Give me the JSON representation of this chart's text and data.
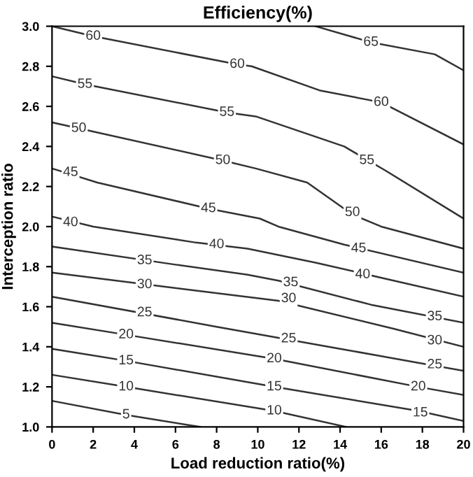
{
  "chart_data": {
    "type": "line",
    "title": "Efficiency(%)",
    "xlabel": "Load reduction ratio(%)",
    "ylabel": "Interception ratio",
    "xlim": [
      0,
      20
    ],
    "xticks": [
      0,
      2,
      4,
      6,
      8,
      10,
      12,
      14,
      16,
      18,
      20
    ],
    "ylim": [
      1.0,
      3.0
    ],
    "yticks": [
      {
        "value": 1.0,
        "label": "1.0"
      },
      {
        "value": 1.2,
        "label": "1.2"
      },
      {
        "value": 1.4,
        "label": "1.4"
      },
      {
        "value": 1.6,
        "label": "1.6"
      },
      {
        "value": 1.8,
        "label": "1.8"
      },
      {
        "value": 2.0,
        "label": "2.0"
      },
      {
        "value": 2.2,
        "label": "2.2"
      },
      {
        "value": 2.4,
        "label": "2.4"
      },
      {
        "value": 2.6,
        "label": "2.6"
      },
      {
        "value": 2.8,
        "label": "2.8"
      },
      {
        "value": 3.0,
        "label": "3.0"
      }
    ],
    "grid": false,
    "line_style": "solid",
    "series": [
      {
        "color": "#333333",
        "x": [
          12.8,
          15.5,
          18.6,
          20
        ],
        "values": [
          3.0,
          2.92,
          2.86,
          2.78
        ]
      },
      {
        "color": "#333333",
        "x": [
          0,
          2,
          9,
          9.7,
          13,
          16,
          20
        ],
        "values": [
          3.0,
          2.95,
          2.81,
          2.8,
          2.68,
          2.62,
          2.41
        ]
      },
      {
        "color": "#333333",
        "x": [
          0,
          1.6,
          8.5,
          9.9,
          14.2,
          16.2,
          20
        ],
        "values": [
          2.75,
          2.71,
          2.57,
          2.55,
          2.4,
          2.28,
          2.04
        ]
      },
      {
        "color": "#333333",
        "x": [
          0,
          1.3,
          8.3,
          9.9,
          12.4,
          14.6,
          16,
          20
        ],
        "values": [
          2.52,
          2.49,
          2.33,
          2.29,
          2.22,
          2.06,
          2.0,
          1.89
        ]
      },
      {
        "color": "#333333",
        "x": [
          0,
          2.2,
          7.6,
          10.1,
          11,
          14.2,
          20
        ],
        "values": [
          2.29,
          2.22,
          2.09,
          2.04,
          2.0,
          1.91,
          1.77
        ]
      },
      {
        "color": "#333333",
        "x": [
          0,
          2,
          7,
          9.5,
          12.8,
          16.2,
          20
        ],
        "values": [
          2.05,
          2.0,
          1.92,
          1.89,
          1.82,
          1.74,
          1.65
        ]
      },
      {
        "color": "#333333",
        "x": [
          0,
          6,
          9.5,
          11,
          15.5,
          20
        ],
        "values": [
          1.9,
          1.81,
          1.76,
          1.73,
          1.61,
          1.52
        ]
      },
      {
        "color": "#333333",
        "x": [
          0,
          7,
          11,
          16.6,
          20
        ],
        "values": [
          1.77,
          1.68,
          1.63,
          1.49,
          1.4
        ]
      },
      {
        "color": "#333333",
        "x": [
          0,
          8,
          14,
          17.8,
          20
        ],
        "values": [
          1.65,
          1.5,
          1.39,
          1.32,
          1.28
        ]
      },
      {
        "color": "#333333",
        "x": [
          0,
          3.6,
          10.8,
          17.8,
          20
        ],
        "values": [
          1.52,
          1.46,
          1.34,
          1.2,
          1.16
        ]
      },
      {
        "color": "#333333",
        "x": [
          0,
          3.6,
          10.8,
          17.8,
          20
        ],
        "values": [
          1.39,
          1.33,
          1.2,
          1.08,
          1.03
        ]
      },
      {
        "color": "#333333",
        "x": [
          0,
          3.6,
          10.8,
          14.3
        ],
        "values": [
          1.26,
          1.2,
          1.08,
          1.0
        ]
      },
      {
        "color": "#333333",
        "x": [
          0,
          3.6,
          7.2
        ],
        "values": [
          1.13,
          1.06,
          1.0
        ]
      }
    ],
    "annotations": [
      {
        "text": "65",
        "x": 15.5,
        "y": 2.92
      },
      {
        "text": "60",
        "x": 2,
        "y": 2.95
      },
      {
        "text": "60",
        "x": 9,
        "y": 2.81
      },
      {
        "text": "60",
        "x": 16,
        "y": 2.62
      },
      {
        "text": "55",
        "x": 1.6,
        "y": 2.71
      },
      {
        "text": "55",
        "x": 8.5,
        "y": 2.57
      },
      {
        "text": "55",
        "x": 15.3,
        "y": 2.33
      },
      {
        "text": "50",
        "x": 1.3,
        "y": 2.49
      },
      {
        "text": "50",
        "x": 8.3,
        "y": 2.33
      },
      {
        "text": "50",
        "x": 14.6,
        "y": 2.07
      },
      {
        "text": "45",
        "x": 0.9,
        "y": 2.27
      },
      {
        "text": "45",
        "x": 7.6,
        "y": 2.09
      },
      {
        "text": "45",
        "x": 14.9,
        "y": 1.89
      },
      {
        "text": "40",
        "x": 0.9,
        "y": 2.02
      },
      {
        "text": "40",
        "x": 8.0,
        "y": 1.91
      },
      {
        "text": "40",
        "x": 15.1,
        "y": 1.76
      },
      {
        "text": "35",
        "x": 4.5,
        "y": 1.83
      },
      {
        "text": "35",
        "x": 11.6,
        "y": 1.72
      },
      {
        "text": "35",
        "x": 18.6,
        "y": 1.55
      },
      {
        "text": "30",
        "x": 4.5,
        "y": 1.71
      },
      {
        "text": "30",
        "x": 11.5,
        "y": 1.64
      },
      {
        "text": "30",
        "x": 18.6,
        "y": 1.43
      },
      {
        "text": "25",
        "x": 4.5,
        "y": 1.57
      },
      {
        "text": "25",
        "x": 11.5,
        "y": 1.44
      },
      {
        "text": "25",
        "x": 18.6,
        "y": 1.31
      },
      {
        "text": "20",
        "x": 3.6,
        "y": 1.46
      },
      {
        "text": "20",
        "x": 10.8,
        "y": 1.34
      },
      {
        "text": "20",
        "x": 17.8,
        "y": 1.2
      },
      {
        "text": "15",
        "x": 3.6,
        "y": 1.33
      },
      {
        "text": "15",
        "x": 10.8,
        "y": 1.2
      },
      {
        "text": "15",
        "x": 17.9,
        "y": 1.07
      },
      {
        "text": "10",
        "x": 3.6,
        "y": 1.2
      },
      {
        "text": "10",
        "x": 10.8,
        "y": 1.08
      },
      {
        "text": "5",
        "x": 3.6,
        "y": 1.06
      }
    ]
  }
}
